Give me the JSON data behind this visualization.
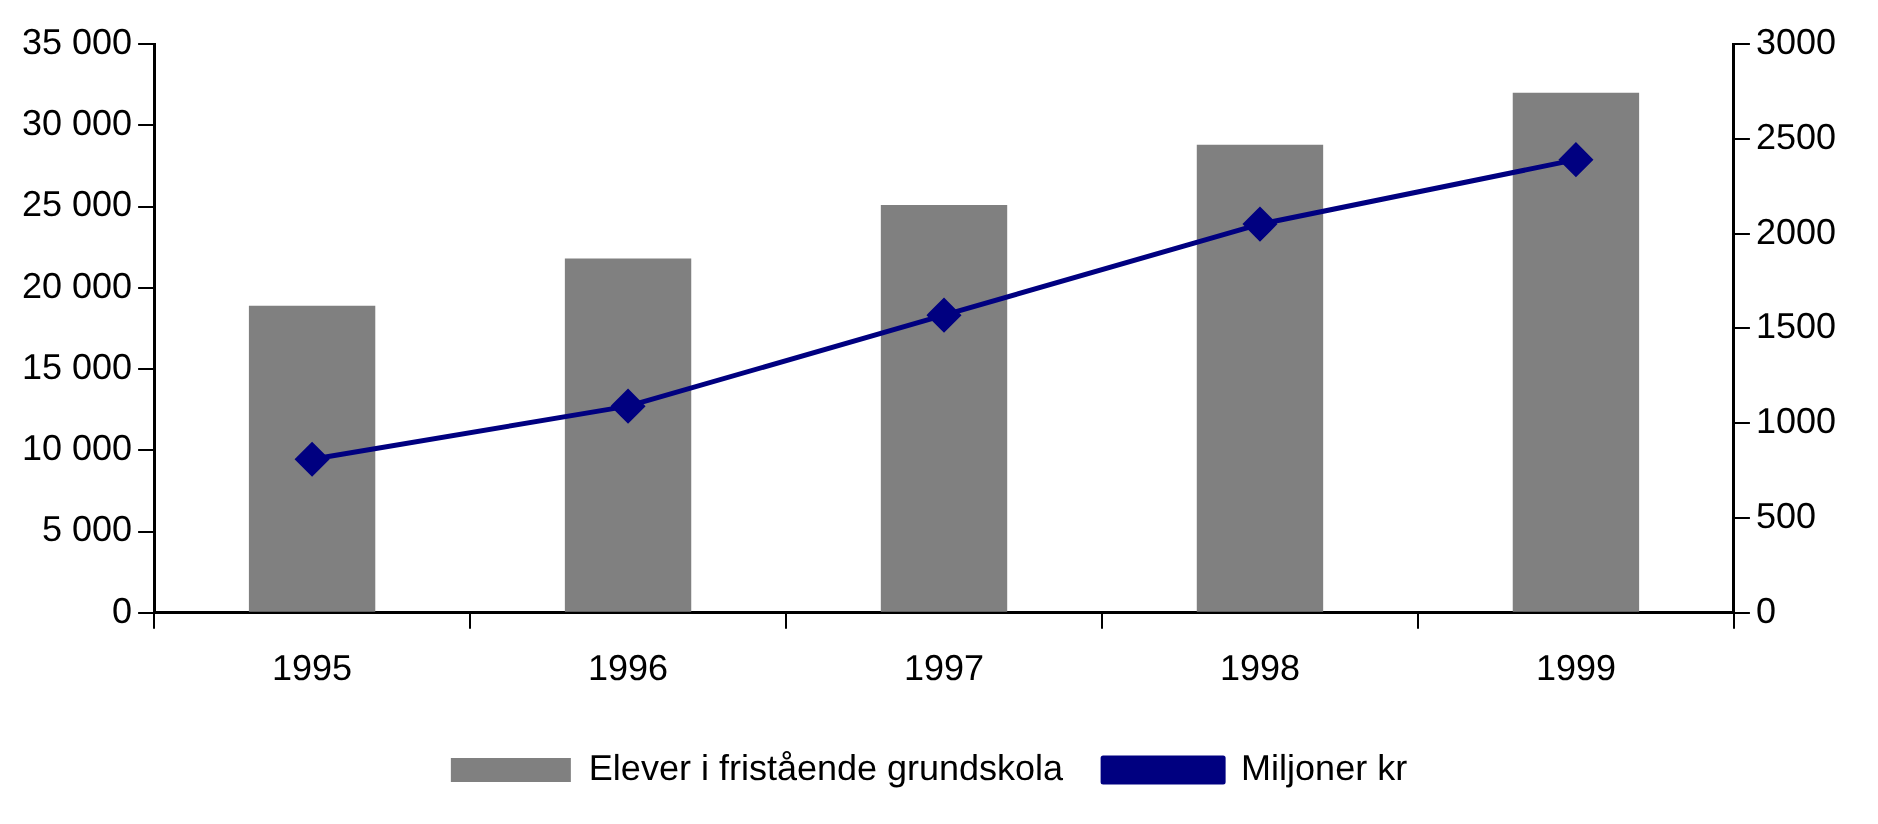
{
  "chart_data": {
    "type": "bar",
    "categories": [
      "1995",
      "1996",
      "1997",
      "1998",
      "1999"
    ],
    "series": [
      {
        "name": "Elever i fristående grundskola",
        "color": "#808080",
        "values": [
          18900,
          21800,
          25100,
          28800,
          32000
        ]
      },
      {
        "name": "Miljoner kr",
        "type": "line",
        "axis": "y2",
        "color": "#000080",
        "values": [
          810,
          1090,
          1570,
          2050,
          2390
        ]
      }
    ],
    "ylim": [
      0,
      35000
    ],
    "yticks": [
      {
        "value": 0,
        "label": "0"
      },
      {
        "value": 5000,
        "label": "5 000"
      },
      {
        "value": 10000,
        "label": "10 000"
      },
      {
        "value": 15000,
        "label": "15 000"
      },
      {
        "value": 20000,
        "label": "20 000"
      },
      {
        "value": 25000,
        "label": "25 000"
      },
      {
        "value": 30000,
        "label": "30 000"
      },
      {
        "value": 35000,
        "label": "35 000"
      }
    ],
    "y2lim": [
      0,
      3000
    ],
    "y2ticks": [
      0,
      500,
      1000,
      1500,
      2000,
      2500,
      3000
    ],
    "grid": false,
    "legend": "bottom",
    "marker": "diamond",
    "line_style": "solid"
  }
}
